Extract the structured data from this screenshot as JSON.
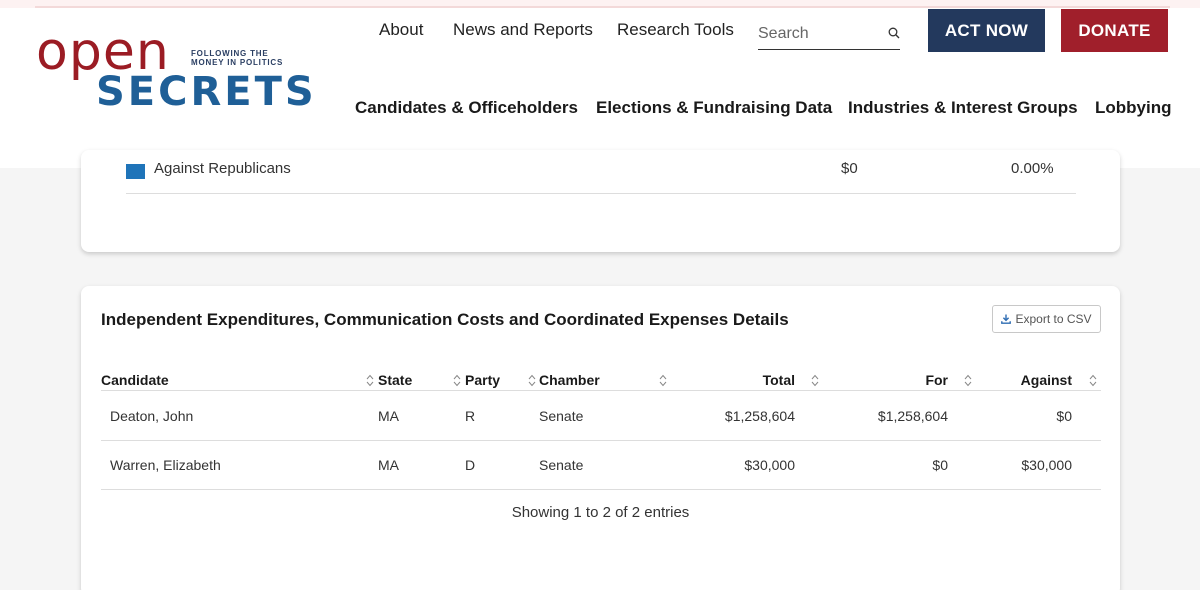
{
  "logo": {
    "open": "open",
    "tagline": "FOLLOWING THE MONEY IN POLITICS",
    "secrets": "SECRETS"
  },
  "nav_top": [
    "About",
    "News and Reports",
    "Research Tools"
  ],
  "search": {
    "placeholder": "Search",
    "icon": "search-icon"
  },
  "buttons": {
    "act_now": "ACT NOW",
    "donate": "DONATE"
  },
  "nav_main": [
    "Candidates & Officeholders",
    "Elections & Fundraising Data",
    "Industries & Interest Groups",
    "Lobbying"
  ],
  "colors": {
    "navy": "#23395d",
    "red": "#a01f2b",
    "brand_blue": "#1f5f97",
    "swatch_blue": "#1f74b9"
  },
  "summary_row": {
    "label": "Against Republicans",
    "amount": "$0",
    "percent": "0.00%"
  },
  "details": {
    "title": "Independent Expenditures, Communication Costs and Coordinated Expenses Details",
    "export_label": "Export to CSV",
    "columns": [
      "Candidate",
      "State",
      "Party",
      "Chamber",
      "Total",
      "For",
      "Against"
    ],
    "rows": [
      {
        "candidate": "Deaton, John",
        "state": "MA",
        "party": "R",
        "chamber": "Senate",
        "total": "$1,258,604",
        "for": "$1,258,604",
        "against": "$0"
      },
      {
        "candidate": "Warren, Elizabeth",
        "state": "MA",
        "party": "D",
        "chamber": "Senate",
        "total": "$30,000",
        "for": "$0",
        "against": "$30,000"
      }
    ],
    "footer": "Showing 1 to 2 of 2 entries"
  }
}
